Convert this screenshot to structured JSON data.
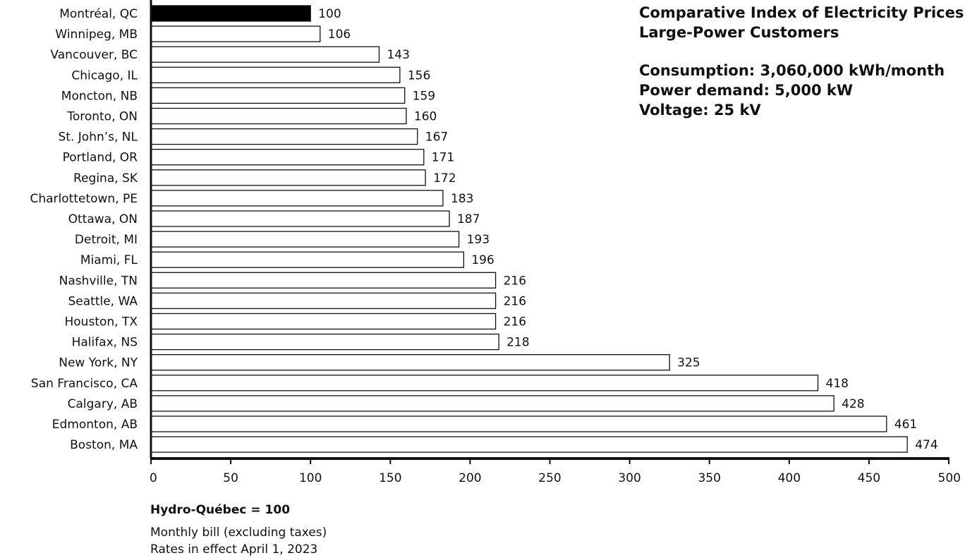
{
  "chart_data": {
    "type": "bar",
    "orientation": "horizontal",
    "title": "Comparative Index of Electricity Prices",
    "subtitle": "Large-Power Customers",
    "categories": [
      "Montréal, QC",
      "Winnipeg, MB",
      "Vancouver, BC",
      "Chicago, IL",
      "Moncton, NB",
      "Toronto, ON",
      "St. John’s, NL",
      "Portland, OR",
      "Regina, SK",
      "Charlottetown, PE",
      "Ottawa, ON",
      "Detroit, MI",
      "Miami, FL",
      "Nashville, TN",
      "Seattle, WA",
      "Houston, TX",
      "Halifax, NS",
      "New York, NY",
      "San Francisco, CA",
      "Calgary, AB",
      "Edmonton, AB",
      "Boston, MA"
    ],
    "values": [
      100,
      106,
      143,
      156,
      159,
      160,
      167,
      171,
      172,
      183,
      187,
      193,
      196,
      216,
      216,
      216,
      218,
      325,
      418,
      428,
      461,
      474
    ],
    "xlim": [
      0,
      500
    ],
    "xticks": [
      0,
      50,
      100,
      150,
      200,
      250,
      300,
      350,
      400,
      450,
      500
    ],
    "xlabel": "",
    "ylabel": "",
    "grid": false,
    "colors": {
      "highlight": "#000000",
      "bar_fill": "#ffffff",
      "bar_stroke": "#111111"
    }
  },
  "specs": {
    "consumption": "Consumption: 3,060,000 kWh/month",
    "power_demand": "Power demand: 5,000 kW",
    "voltage": "Voltage: 25 kV"
  },
  "notes": {
    "baseline": "Hydro-Québec = 100",
    "line1": "Monthly bill (excluding taxes)",
    "line2": "Rates in effect April 1, 2023"
  }
}
